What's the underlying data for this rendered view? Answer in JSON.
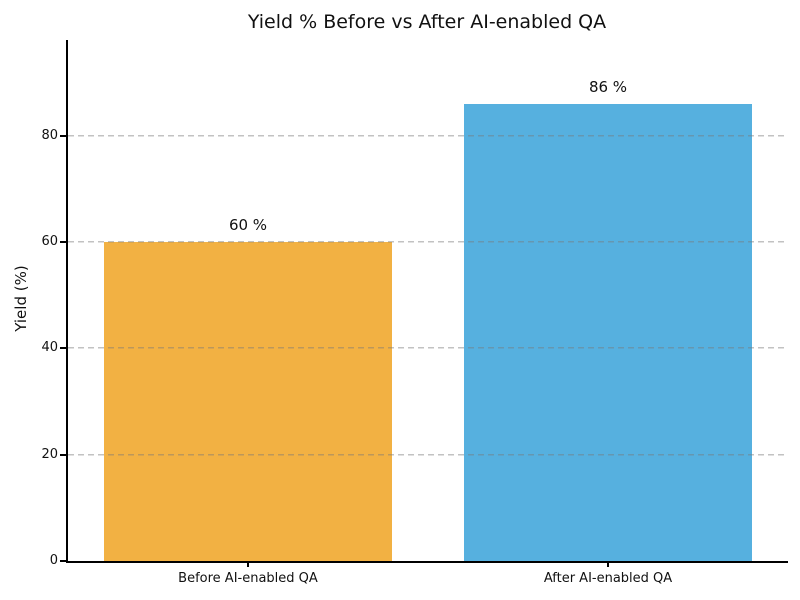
{
  "chart_data": {
    "type": "bar",
    "title": "Yield % Before vs After AI-enabled QA",
    "ylabel": "Yield (%)",
    "xlabel": "",
    "categories": [
      "Before AI-enabled QA",
      "After AI-enabled QA"
    ],
    "values": [
      60,
      86
    ],
    "bar_labels": [
      "60 %",
      "86 %"
    ],
    "bar_colors": [
      "#F2B143",
      "#56B0DF"
    ],
    "yticks": [
      0,
      20,
      40,
      60,
      80
    ],
    "ylim": [
      0,
      98
    ],
    "grid": {
      "axis": "y",
      "style": "dashed",
      "color": "#c9c9c9"
    },
    "legend_position": "none",
    "background_color": "#ffffff",
    "spine_color": "#000000"
  }
}
